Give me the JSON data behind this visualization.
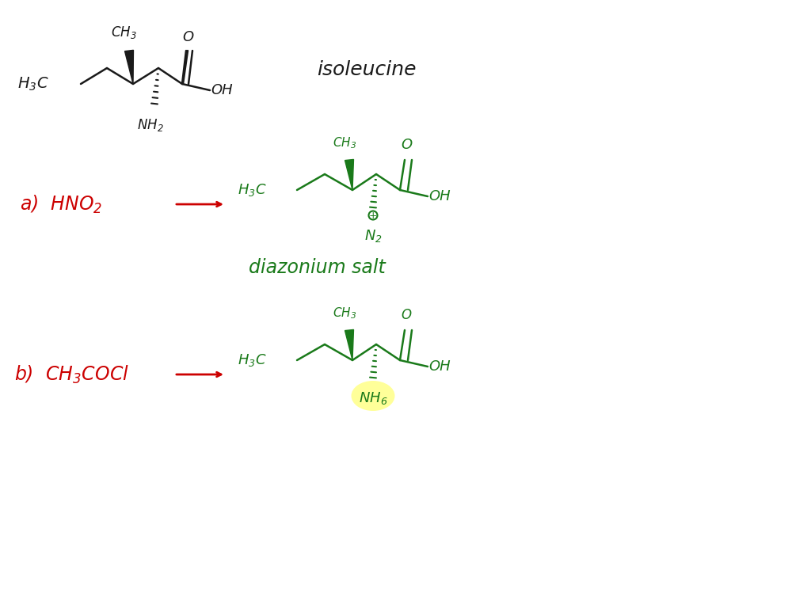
{
  "background_color": "#ffffff",
  "title": "",
  "figsize": [
    10.24,
    7.68
  ],
  "dpi": 100,
  "isoleucine_label": "isoleucine",
  "reaction_a_label": "a)  HNO₂  →",
  "reaction_b_label": "b)  CH₃COCl  →",
  "diazonium_label": "diazonium salt",
  "black_color": "#1a1a1a",
  "red_color": "#cc0000",
  "green_color": "#1a7a1a",
  "highlight_color": "#ffff99"
}
